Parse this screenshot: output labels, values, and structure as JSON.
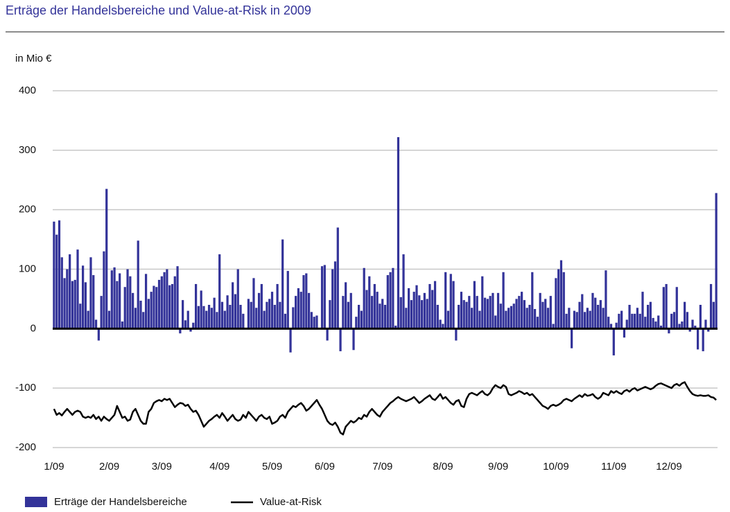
{
  "chart_data": {
    "type": "bar",
    "title": "Erträge der Handelsbereiche und Value-at-Risk in 2009",
    "y_label": "in Mio €",
    "ylim": [
      -200,
      400
    ],
    "yticks": [
      -200,
      -100,
      0,
      100,
      200,
      300,
      400
    ],
    "grid": true,
    "categories": [
      "1/09",
      null,
      null,
      null,
      null,
      null,
      null,
      null,
      null,
      null,
      null,
      null,
      null,
      null,
      null,
      null,
      null,
      null,
      null,
      null,
      null,
      "2/09",
      null,
      null,
      null,
      null,
      null,
      null,
      null,
      null,
      null,
      null,
      null,
      null,
      null,
      null,
      null,
      null,
      null,
      null,
      null,
      "3/09",
      null,
      null,
      null,
      null,
      null,
      null,
      null,
      null,
      null,
      null,
      null,
      null,
      null,
      null,
      null,
      null,
      null,
      null,
      null,
      null,
      null,
      "4/09",
      null,
      null,
      null,
      null,
      null,
      null,
      null,
      null,
      null,
      null,
      null,
      null,
      null,
      null,
      null,
      null,
      null,
      null,
      null,
      "5/09",
      null,
      null,
      null,
      null,
      null,
      null,
      null,
      null,
      null,
      null,
      null,
      null,
      null,
      null,
      null,
      null,
      null,
      null,
      null,
      "6/09",
      null,
      null,
      null,
      null,
      null,
      null,
      null,
      null,
      null,
      null,
      null,
      null,
      null,
      null,
      null,
      null,
      null,
      null,
      null,
      null,
      null,
      "7/09",
      null,
      null,
      null,
      null,
      null,
      null,
      null,
      null,
      null,
      null,
      null,
      null,
      null,
      null,
      null,
      null,
      null,
      null,
      null,
      null,
      null,
      null,
      "8/09",
      null,
      null,
      null,
      null,
      null,
      null,
      null,
      null,
      null,
      null,
      null,
      null,
      null,
      null,
      null,
      null,
      null,
      null,
      null,
      null,
      "9/09",
      null,
      null,
      null,
      null,
      null,
      null,
      null,
      null,
      null,
      null,
      null,
      null,
      null,
      null,
      null,
      null,
      null,
      null,
      null,
      null,
      null,
      "10/09",
      null,
      null,
      null,
      null,
      null,
      null,
      null,
      null,
      null,
      null,
      null,
      null,
      null,
      null,
      null,
      null,
      null,
      null,
      null,
      null,
      null,
      "11/09",
      null,
      null,
      null,
      null,
      null,
      null,
      null,
      null,
      null,
      null,
      null,
      null,
      null,
      null,
      null,
      null,
      null,
      null,
      null,
      null,
      "12/09",
      null,
      null,
      null,
      null,
      null,
      null,
      null,
      null,
      null,
      null,
      null,
      null,
      null,
      null,
      null,
      null,
      null,
      null
    ],
    "series": [
      {
        "name": "Erträge der Handelsbereiche",
        "type": "bar",
        "color": "#333399",
        "values": [
          180,
          158,
          182,
          120,
          85,
          100,
          125,
          80,
          82,
          133,
          42,
          106,
          78,
          30,
          120,
          90,
          15,
          -20,
          55,
          130,
          235,
          30,
          98,
          103,
          80,
          93,
          12,
          70,
          100,
          88,
          60,
          35,
          148,
          47,
          28,
          92,
          50,
          62,
          72,
          70,
          82,
          88,
          95,
          100,
          73,
          75,
          88,
          105,
          -8,
          48,
          14,
          30,
          -5,
          10,
          75,
          38,
          64,
          38,
          30,
          40,
          35,
          52,
          28,
          125,
          45,
          30,
          56,
          40,
          78,
          58,
          100,
          40,
          25,
          0,
          50,
          45,
          85,
          35,
          60,
          75,
          30,
          45,
          50,
          62,
          40,
          75,
          45,
          150,
          25,
          97,
          -40,
          36,
          55,
          68,
          62,
          90,
          93,
          60,
          28,
          20,
          22,
          0,
          105,
          107,
          -20,
          48,
          100,
          113,
          170,
          -38,
          55,
          78,
          45,
          60,
          -36,
          20,
          40,
          30,
          102,
          65,
          88,
          55,
          75,
          62,
          42,
          50,
          40,
          90,
          95,
          102,
          5,
          322,
          53,
          125,
          35,
          68,
          48,
          62,
          73,
          56,
          48,
          60,
          50,
          75,
          65,
          80,
          40,
          15,
          8,
          95,
          30,
          92,
          80,
          -20,
          40,
          62,
          48,
          45,
          55,
          35,
          80,
          55,
          30,
          88,
          52,
          50,
          55,
          60,
          22,
          60,
          42,
          95,
          30,
          35,
          38,
          42,
          50,
          55,
          62,
          48,
          35,
          40,
          95,
          33,
          20,
          60,
          45,
          50,
          35,
          55,
          8,
          85,
          100,
          115,
          95,
          25,
          35,
          -33,
          30,
          28,
          45,
          58,
          28,
          35,
          30,
          60,
          52,
          40,
          48,
          35,
          98,
          20,
          8,
          -45,
          10,
          25,
          30,
          -15,
          15,
          40,
          25,
          25,
          35,
          25,
          62,
          20,
          40,
          45,
          18,
          12,
          22,
          5,
          70,
          75,
          -8,
          25,
          28,
          70,
          8,
          12,
          45,
          28,
          -5,
          15,
          5,
          -35,
          40,
          -38,
          15,
          -5,
          75,
          45,
          228
        ]
      },
      {
        "name": "Value-at-Risk",
        "type": "line",
        "color": "#000000",
        "values": [
          -135,
          -145,
          -142,
          -146,
          -140,
          -135,
          -140,
          -145,
          -140,
          -138,
          -140,
          -148,
          -150,
          -148,
          -150,
          -145,
          -152,
          -148,
          -155,
          -148,
          -152,
          -155,
          -150,
          -145,
          -130,
          -140,
          -150,
          -148,
          -155,
          -153,
          -140,
          -135,
          -145,
          -155,
          -160,
          -160,
          -140,
          -135,
          -125,
          -122,
          -120,
          -122,
          -118,
          -120,
          -118,
          -125,
          -132,
          -128,
          -125,
          -126,
          -130,
          -128,
          -135,
          -140,
          -138,
          -145,
          -155,
          -165,
          -160,
          -155,
          -152,
          -148,
          -145,
          -150,
          -142,
          -148,
          -155,
          -150,
          -145,
          -152,
          -155,
          -153,
          -145,
          -150,
          -140,
          -145,
          -150,
          -155,
          -148,
          -145,
          -150,
          -152,
          -148,
          -160,
          -158,
          -155,
          -148,
          -145,
          -150,
          -140,
          -135,
          -130,
          -132,
          -128,
          -125,
          -130,
          -138,
          -135,
          -130,
          -125,
          -120,
          -128,
          -135,
          -145,
          -155,
          -160,
          -162,
          -158,
          -165,
          -175,
          -178,
          -165,
          -160,
          -155,
          -158,
          -155,
          -150,
          -152,
          -145,
          -148,
          -140,
          -135,
          -140,
          -145,
          -148,
          -140,
          -135,
          -130,
          -125,
          -122,
          -118,
          -115,
          -118,
          -120,
          -122,
          -120,
          -118,
          -115,
          -120,
          -125,
          -122,
          -118,
          -115,
          -112,
          -118,
          -120,
          -115,
          -110,
          -118,
          -115,
          -120,
          -125,
          -128,
          -122,
          -120,
          -130,
          -132,
          -118,
          -110,
          -108,
          -110,
          -112,
          -108,
          -105,
          -110,
          -112,
          -108,
          -100,
          -95,
          -98,
          -100,
          -95,
          -98,
          -110,
          -112,
          -110,
          -108,
          -105,
          -107,
          -110,
          -108,
          -112,
          -110,
          -115,
          -120,
          -125,
          -130,
          -132,
          -135,
          -130,
          -128,
          -130,
          -128,
          -125,
          -120,
          -118,
          -120,
          -122,
          -118,
          -115,
          -112,
          -115,
          -110,
          -113,
          -112,
          -110,
          -115,
          -118,
          -115,
          -108,
          -110,
          -112,
          -105,
          -108,
          -105,
          -108,
          -110,
          -105,
          -103,
          -106,
          -102,
          -100,
          -104,
          -102,
          -100,
          -98,
          -100,
          -102,
          -100,
          -96,
          -93,
          -92,
          -94,
          -96,
          -98,
          -100,
          -95,
          -93,
          -96,
          -92,
          -90,
          -98,
          -105,
          -110,
          -112,
          -113,
          -112,
          -113,
          -113,
          -112,
          -115,
          -116,
          -120
        ]
      }
    ]
  }
}
